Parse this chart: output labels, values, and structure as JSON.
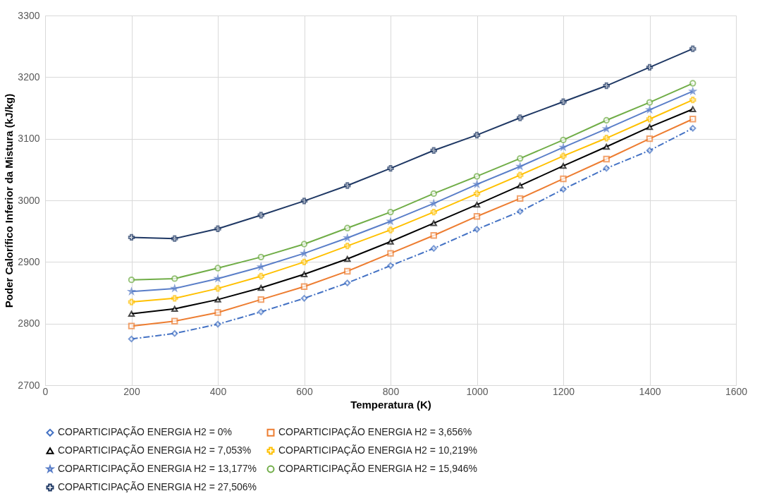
{
  "chart_data": {
    "type": "line",
    "xlabel": "Temperatura (K)",
    "ylabel": "Poder Calorífico Inferior da Mistura (kJ/kg)",
    "x": [
      200,
      300,
      400,
      500,
      600,
      700,
      800,
      900,
      1000,
      1100,
      1200,
      1300,
      1400,
      1500
    ],
    "xlim": [
      0,
      1600
    ],
    "xticks": [
      0,
      200,
      400,
      600,
      800,
      1000,
      1200,
      1400,
      1600
    ],
    "ylim": [
      2700,
      3300
    ],
    "yticks": [
      2700,
      2800,
      2900,
      3000,
      3100,
      3200,
      3300
    ],
    "grid": true,
    "legend": "bottom",
    "series": [
      {
        "name": "COPARTICIPAÇÃO ENERGIA H2 = 0%",
        "color": "#4472c4",
        "marker": "diamond",
        "line_style": "dashed",
        "values": [
          2775,
          2784,
          2799,
          2819,
          2841,
          2866,
          2894,
          2922,
          2953,
          2982,
          3018,
          3052,
          3081,
          3117
        ]
      },
      {
        "name": "COPARTICIPAÇÃO ENERGIA H2 = 3,656%",
        "color": "#ed7d31",
        "marker": "square",
        "values": [
          2796,
          2804,
          2818,
          2839,
          2860,
          2885,
          2914,
          2943,
          2974,
          3003,
          3035,
          3067,
          3100,
          3132
        ]
      },
      {
        "name": "COPARTICIPAÇÃO ENERGIA H2 = 7,053%",
        "color": "#000000",
        "marker": "triangle",
        "values": [
          2816,
          2824,
          2839,
          2858,
          2880,
          2905,
          2933,
          2963,
          2993,
          3024,
          3056,
          3087,
          3119,
          3148
        ]
      },
      {
        "name": "COPARTICIPAÇÃO ENERGIA H2 = 10,219%",
        "color": "#ffc000",
        "marker": "cross",
        "values": [
          2835,
          2841,
          2857,
          2877,
          2900,
          2926,
          2952,
          2981,
          3011,
          3041,
          3072,
          3101,
          3132,
          3163
        ]
      },
      {
        "name": "COPARTICIPAÇÃO ENERGIA H2 = 13,177%",
        "color": "#5a7ec8",
        "marker": "star",
        "values": [
          2852,
          2857,
          2873,
          2892,
          2914,
          2939,
          2966,
          2995,
          3026,
          3055,
          3086,
          3116,
          3147,
          3177
        ]
      },
      {
        "name": "COPARTICIPAÇÃO ENERGIA H2 = 15,946%",
        "color": "#70ad47",
        "marker": "circle",
        "values": [
          2871,
          2873,
          2890,
          2908,
          2929,
          2955,
          2981,
          3011,
          3039,
          3068,
          3098,
          3130,
          3159,
          3190
        ]
      },
      {
        "name": "COPARTICIPAÇÃO ENERGIA H2 = 27,506%",
        "color": "#1f3864",
        "marker": "cross",
        "values": [
          2940,
          2938,
          2954,
          2976,
          2999,
          3024,
          3052,
          3081,
          3106,
          3134,
          3160,
          3186,
          3216,
          3246
        ]
      }
    ]
  }
}
